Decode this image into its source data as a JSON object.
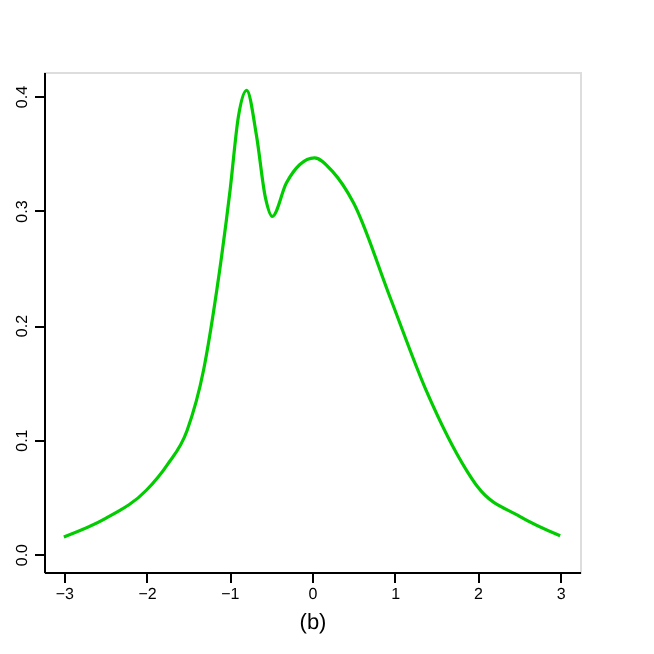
{
  "chart_data": {
    "type": "line",
    "xlabel": "(b)",
    "x": [
      -3,
      -2.5,
      -2,
      -1.75,
      -1.51,
      -1.31,
      -1.15,
      -0.99,
      -0.89,
      -0.79,
      -0.67,
      -0.565,
      -0.48,
      -0.31,
      -0.15,
      0.03,
      0.25,
      0.5,
      0.94,
      1.38,
      1.87,
      2,
      2.51,
      3
    ],
    "series": [
      {
        "color": "#00cc00",
        "values": [
          0.015,
          0.031,
          0.056,
          0.078,
          0.108,
          0.161,
          0.231,
          0.318,
          0.382,
          0.405,
          0.365,
          0.312,
          0.295,
          0.324,
          0.34,
          0.346,
          0.334,
          0.307,
          0.225,
          0.143,
          0.073,
          0.059,
          0.033,
          0.016
        ]
      }
    ],
    "xlim": [
      -3.24,
      3.24
    ],
    "ylim": [
      -0.0156,
      0.421
    ],
    "xticks": [
      -3,
      -2,
      -1,
      0,
      1,
      2,
      3
    ],
    "yticks": [
      {
        "value": 0,
        "label": "0.0"
      },
      0.1,
      0.2,
      0.3,
      0.4
    ],
    "grid": false,
    "marker": "none",
    "line_style": "solid"
  }
}
